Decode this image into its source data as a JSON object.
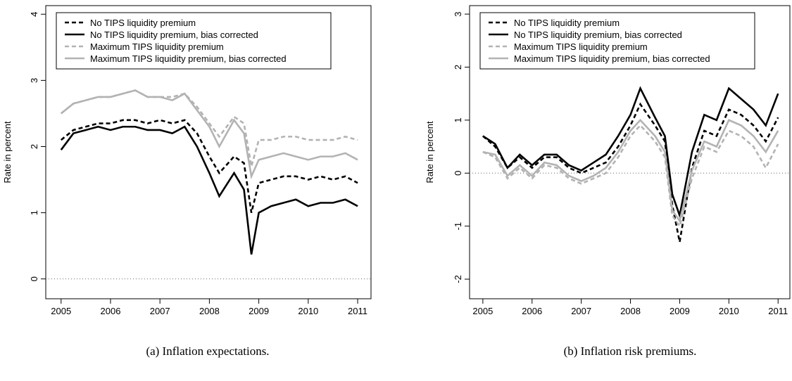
{
  "chart_data": [
    {
      "type": "line",
      "ylabel": "Rate in percent",
      "caption": "(a) Inflation expectations.",
      "x": [
        2005,
        2005.25,
        2005.5,
        2005.75,
        2006,
        2006.25,
        2006.5,
        2006.75,
        2007,
        2007.25,
        2007.5,
        2007.75,
        2008,
        2008.2,
        2008.5,
        2008.7,
        2008.85,
        2009,
        2009.25,
        2009.5,
        2009.75,
        2010,
        2010.25,
        2010.5,
        2010.75,
        2011
      ],
      "xlim": [
        2004.69,
        2011.27
      ],
      "xticks": [
        2005,
        2006,
        2007,
        2008,
        2009,
        2010,
        2011
      ],
      "ylim": [
        -0.3,
        4.13
      ],
      "yticks": [
        0,
        1,
        2,
        3,
        4
      ],
      "hline": 0,
      "legend": "upper left",
      "series": [
        {
          "name": "No TIPS liquidity premium",
          "color": "#000000",
          "dashed": true,
          "values": [
            2.1,
            2.25,
            2.3,
            2.35,
            2.35,
            2.4,
            2.4,
            2.35,
            2.4,
            2.35,
            2.4,
            2.2,
            1.85,
            1.6,
            1.85,
            1.75,
            1.0,
            1.45,
            1.5,
            1.55,
            1.55,
            1.5,
            1.55,
            1.5,
            1.55,
            1.45
          ]
        },
        {
          "name": "No TIPS liquidity premium, bias corrected",
          "color": "#000000",
          "dashed": false,
          "values": [
            1.95,
            2.2,
            2.25,
            2.3,
            2.25,
            2.3,
            2.3,
            2.25,
            2.25,
            2.2,
            2.3,
            2.0,
            1.6,
            1.25,
            1.6,
            1.35,
            0.37,
            1.0,
            1.1,
            1.15,
            1.2,
            1.1,
            1.15,
            1.15,
            1.2,
            1.1
          ]
        },
        {
          "name": "Maximum TIPS liquidity premium",
          "color": "#b3b3b3",
          "dashed": true,
          "values": [
            2.5,
            2.65,
            2.7,
            2.75,
            2.75,
            2.8,
            2.85,
            2.75,
            2.75,
            2.75,
            2.8,
            2.6,
            2.35,
            2.15,
            2.45,
            2.35,
            1.7,
            2.1,
            2.1,
            2.15,
            2.15,
            2.1,
            2.1,
            2.1,
            2.15,
            2.1
          ]
        },
        {
          "name": "Maximum TIPS liquidity premium, bias corrected",
          "color": "#b3b3b3",
          "dashed": false,
          "values": [
            2.5,
            2.65,
            2.7,
            2.75,
            2.75,
            2.8,
            2.85,
            2.75,
            2.75,
            2.7,
            2.8,
            2.55,
            2.3,
            2.0,
            2.4,
            2.2,
            1.55,
            1.8,
            1.85,
            1.9,
            1.85,
            1.8,
            1.85,
            1.85,
            1.9,
            1.8
          ]
        }
      ]
    },
    {
      "type": "line",
      "ylabel": "Rate in percent",
      "caption": "(b) Inflation risk premiums.",
      "x": [
        2005,
        2005.25,
        2005.5,
        2005.75,
        2006,
        2006.25,
        2006.5,
        2006.75,
        2007,
        2007.25,
        2007.5,
        2007.75,
        2008,
        2008.2,
        2008.5,
        2008.7,
        2008.85,
        2009,
        2009.25,
        2009.5,
        2009.75,
        2010,
        2010.25,
        2010.5,
        2010.75,
        2011
      ],
      "xlim": [
        2004.73,
        2011.24
      ],
      "xticks": [
        2005,
        2006,
        2007,
        2008,
        2009,
        2010,
        2011
      ],
      "ylim": [
        -2.37,
        3.16
      ],
      "yticks": [
        -2,
        -1,
        0,
        1,
        2,
        3
      ],
      "hline": 0,
      "legend": "upper left",
      "series": [
        {
          "name": "No TIPS liquidity premium",
          "color": "#000000",
          "dashed": true,
          "values": [
            0.7,
            0.5,
            0.1,
            0.3,
            0.1,
            0.3,
            0.3,
            0.1,
            0.0,
            0.1,
            0.2,
            0.5,
            0.9,
            1.3,
            0.9,
            0.6,
            -0.6,
            -1.3,
            0.1,
            0.8,
            0.7,
            1.2,
            1.1,
            0.9,
            0.6,
            1.05
          ]
        },
        {
          "name": "No TIPS liquidity premium, bias corrected",
          "color": "#000000",
          "dashed": false,
          "values": [
            0.7,
            0.55,
            0.1,
            0.35,
            0.15,
            0.35,
            0.35,
            0.15,
            0.05,
            0.2,
            0.35,
            0.7,
            1.1,
            1.6,
            1.05,
            0.7,
            -0.4,
            -0.8,
            0.4,
            1.1,
            1.0,
            1.6,
            1.4,
            1.2,
            0.9,
            1.5
          ]
        },
        {
          "name": "Maximum TIPS liquidity premium",
          "color": "#b3b3b3",
          "dashed": true,
          "values": [
            0.4,
            0.3,
            -0.1,
            0.1,
            -0.1,
            0.15,
            0.1,
            -0.1,
            -0.2,
            -0.1,
            0.0,
            0.3,
            0.7,
            0.9,
            0.6,
            0.3,
            -0.8,
            -1.0,
            -0.1,
            0.5,
            0.4,
            0.8,
            0.7,
            0.5,
            0.1,
            0.55
          ]
        },
        {
          "name": "Maximum TIPS liquidity premium, bias corrected",
          "color": "#b3b3b3",
          "dashed": false,
          "values": [
            0.4,
            0.35,
            -0.05,
            0.15,
            -0.05,
            0.2,
            0.15,
            -0.05,
            -0.15,
            -0.05,
            0.1,
            0.4,
            0.8,
            1.0,
            0.7,
            0.4,
            -0.7,
            -0.9,
            0.05,
            0.6,
            0.5,
            1.0,
            0.9,
            0.7,
            0.4,
            0.8
          ]
        }
      ]
    }
  ]
}
